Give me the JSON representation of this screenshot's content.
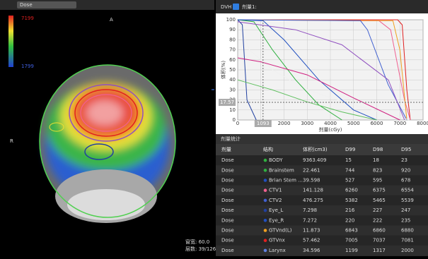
{
  "dose_view": {
    "dataset": "Dose",
    "colorbar_max": "7199",
    "colorbar_min": "1799",
    "orientation_top": "A",
    "orientation_left": "R",
    "info": [
      "窗宽: 60.0",
      "层数: 39/126"
    ]
  },
  "dvh_header": {
    "label": "DVH",
    "dose_name": "剂量1:"
  },
  "chart_data": {
    "type": "line",
    "x_label": "剂量(cGy)",
    "y_label": "体积(%)",
    "xlim": [
      0,
      8000
    ],
    "ylim": [
      0,
      100
    ],
    "xticks": [
      0,
      1000,
      2000,
      3000,
      4000,
      5000,
      6000,
      7000,
      8000
    ],
    "yticks": [
      0,
      10,
      20,
      30,
      40,
      50,
      60,
      70,
      80,
      90,
      100
    ],
    "grid": true,
    "crosshair": {
      "x": 1093,
      "y": 17.57
    },
    "series": [
      {
        "color": "#e02020",
        "x": [
          0,
          6900,
          7100,
          7300,
          7450
        ],
        "values": [
          100,
          100,
          95,
          30,
          0
        ]
      },
      {
        "color": "#f06090",
        "x": [
          0,
          6100,
          6600,
          7200,
          7450
        ],
        "values": [
          100,
          99,
          90,
          20,
          0
        ]
      },
      {
        "color": "#f0a020",
        "x": [
          0,
          6700,
          7000,
          7300
        ],
        "values": [
          100,
          99,
          70,
          0
        ]
      },
      {
        "color": "#4060d0",
        "x": [
          0,
          5300,
          5600,
          6500,
          7300
        ],
        "values": [
          100,
          99,
          90,
          35,
          0
        ]
      },
      {
        "color": "#f0f0f0",
        "x": [
          0,
          500,
          1500,
          3000,
          5000,
          7000,
          7400
        ],
        "values": [
          100,
          70,
          50,
          30,
          15,
          3,
          0
        ]
      },
      {
        "color": "#30b040",
        "x": [
          0,
          700,
          1500,
          2500,
          3500,
          4500
        ],
        "values": [
          100,
          98,
          70,
          40,
          15,
          0
        ]
      },
      {
        "color": "#2050c0",
        "x": [
          0,
          1100,
          2000,
          3500,
          5000,
          6000
        ],
        "values": [
          100,
          99,
          80,
          40,
          10,
          0
        ]
      },
      {
        "color": "#2040a0",
        "x": [
          0,
          200,
          400,
          800
        ],
        "values": [
          100,
          95,
          20,
          0
        ]
      },
      {
        "color": "#d02080",
        "x": [
          0,
          1000,
          3000,
          5000,
          7000
        ],
        "values": [
          62,
          58,
          45,
          22,
          0
        ]
      },
      {
        "color": "#9050c0",
        "x": [
          0,
          2500,
          4500,
          6500,
          7200
        ],
        "values": [
          98,
          90,
          75,
          40,
          0
        ]
      },
      {
        "color": "#60c060",
        "x": [
          0,
          1500,
          3000,
          4500,
          6000
        ],
        "values": [
          40,
          30,
          18,
          8,
          0
        ]
      }
    ]
  },
  "table": {
    "title": "剂量统计",
    "header": [
      "剂量",
      "结构",
      "体积(cm3)",
      "D99",
      "D98",
      "D95"
    ],
    "row_colors": [
      "#30b040",
      "#30b040",
      "#2050c0",
      "#f06090",
      "#4060d0",
      "#2040a0",
      "#2050c0",
      "#f0a020",
      "#e02020",
      "#6080e0"
    ],
    "rows": [
      [
        "Dose",
        "BODY",
        "9363.409",
        "15",
        "18",
        "23"
      ],
      [
        "Dose",
        "Brainstem",
        "22.461",
        "744",
        "823",
        "920"
      ],
      [
        "Dose",
        "Brian Stem ...",
        "39.598",
        "527",
        "595",
        "678"
      ],
      [
        "Dose",
        "CTV1",
        "141.128",
        "6260",
        "6375",
        "6554"
      ],
      [
        "Dose",
        "CTV2",
        "476.275",
        "5382",
        "5465",
        "5539"
      ],
      [
        "Dose",
        "Eye_L",
        "7.298",
        "216",
        "227",
        "247"
      ],
      [
        "Dose",
        "Eye_R",
        "7.272",
        "220",
        "222",
        "235"
      ],
      [
        "Dose",
        "GTVnd(L)",
        "11.873",
        "6843",
        "6860",
        "6880"
      ],
      [
        "Dose",
        "GTVnx",
        "57.462",
        "7005",
        "7037",
        "7081"
      ],
      [
        "Dose",
        "Larynx",
        "34.596",
        "1199",
        "1317",
        "2000"
      ]
    ]
  }
}
